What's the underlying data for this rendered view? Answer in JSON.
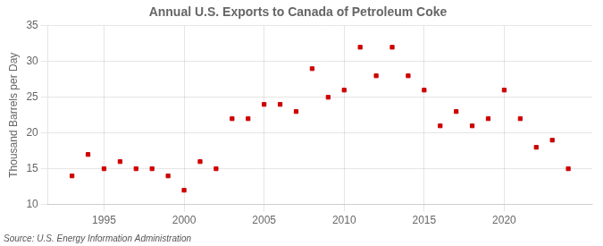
{
  "chart_data": {
    "type": "scatter",
    "title": "Annual U.S. Exports to Canada of Petroleum Coke",
    "ylabel": "Thousand Barrels per Day",
    "source": "Source: U.S. Energy Information Administration",
    "x": [
      1993,
      1994,
      1995,
      1996,
      1997,
      1998,
      1999,
      2000,
      2001,
      2002,
      2003,
      2004,
      2005,
      2006,
      2007,
      2008,
      2009,
      2010,
      2011,
      2012,
      2013,
      2014,
      2015,
      2016,
      2017,
      2018,
      2019,
      2020,
      2021,
      2022,
      2023,
      2024
    ],
    "values": [
      14,
      17,
      15,
      16,
      15,
      15,
      14,
      12,
      16,
      15,
      22,
      22,
      24,
      24,
      23,
      29,
      25,
      26,
      32,
      28,
      32,
      28,
      26,
      21,
      23,
      21,
      22,
      26,
      22,
      18,
      19,
      15
    ],
    "color": "#cc0000",
    "marker": "square",
    "ylim": [
      10,
      35
    ],
    "yticks": [
      10,
      15,
      20,
      25,
      30,
      35
    ],
    "xlim": [
      1991.5,
      2025.5
    ],
    "xticks": [
      1995,
      2000,
      2005,
      2010,
      2015,
      2020
    ],
    "grid": true
  }
}
